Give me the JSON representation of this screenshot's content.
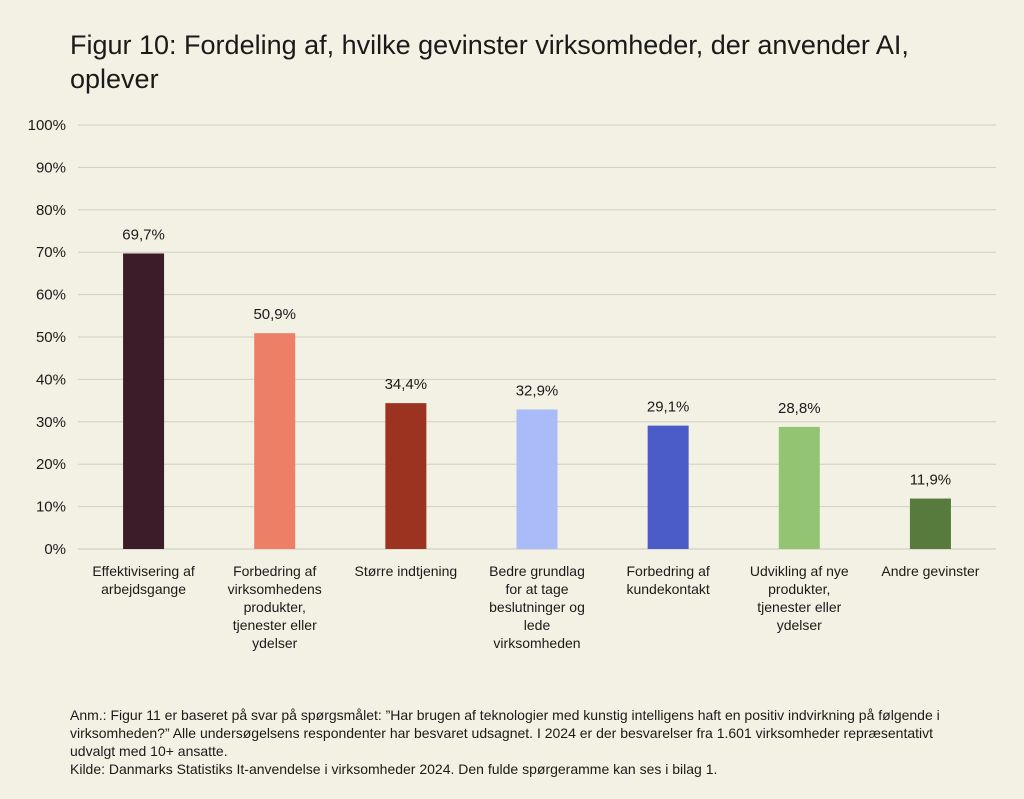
{
  "chart_data": {
    "type": "bar",
    "title": "Figur 10: Fordeling af, hvilke gevinster virksomheder, der anvender AI, oplever",
    "categories": [
      "Effektivisering af arbejdsgange",
      "Forbedring af virksomhedens produkter, tjenester eller ydelser",
      "Større indtjening",
      "Bedre grundlag for at tage beslutninger og lede virksomheden",
      "Forbedring af kundekontakt",
      "Udvikling af nye produkter, tjenester eller ydelser",
      "Andre gevinster"
    ],
    "category_lines": [
      [
        "Effektivisering af",
        "arbejdsgange"
      ],
      [
        "Forbedring af",
        "virksomhedens",
        "produkter,",
        "tjenester eller",
        "ydelser"
      ],
      [
        "Større indtjening"
      ],
      [
        "Bedre grundlag",
        "for at tage",
        "beslutninger og",
        "lede",
        "virksomheden"
      ],
      [
        "Forbedring af",
        "kundekontakt"
      ],
      [
        "Udvikling af nye",
        "produkter,",
        "tjenester eller",
        "ydelser"
      ],
      [
        "Andre gevinster"
      ]
    ],
    "values": [
      69.7,
      50.9,
      34.4,
      32.9,
      29.1,
      28.8,
      11.9
    ],
    "value_labels": [
      "69,7%",
      "50,9%",
      "34,4%",
      "32,9%",
      "29,1%",
      "28,8%",
      "11,9%"
    ],
    "colors": [
      "#3b1c28",
      "#ec7f65",
      "#9c3320",
      "#a9bcf9",
      "#4b5cc9",
      "#93c474",
      "#577a3d"
    ],
    "ylim": [
      0,
      100
    ],
    "yticks": [
      0,
      10,
      20,
      30,
      40,
      50,
      60,
      70,
      80,
      90,
      100
    ],
    "ytick_labels": [
      "0%",
      "10%",
      "20%",
      "30%",
      "40%",
      "50%",
      "60%",
      "70%",
      "80%",
      "90%",
      "100%"
    ],
    "grid": true,
    "xlabel": "",
    "ylabel": ""
  },
  "note": {
    "anm": "Anm.: Figur 11 er baseret på svar på spørgsmålet: ”Har brugen af teknologier med kunstig intelligens haft en positiv indvirkning på følgende i virksomheden?” Alle undersøgelsens respondenter har besvaret udsagnet. I 2024 er der besvarelser fra 1.601 virksomheder repræsentativt udvalgt med 10+ ansatte.",
    "kilde": "Kilde: Danmarks Statistiks It-anvendelse i virksomheder 2024. Den fulde spørgeramme kan ses i bilag 1."
  },
  "colors": {
    "background": "#f3f1e4",
    "grid": "#d2d0c4",
    "text": "#1a1a1a"
  }
}
